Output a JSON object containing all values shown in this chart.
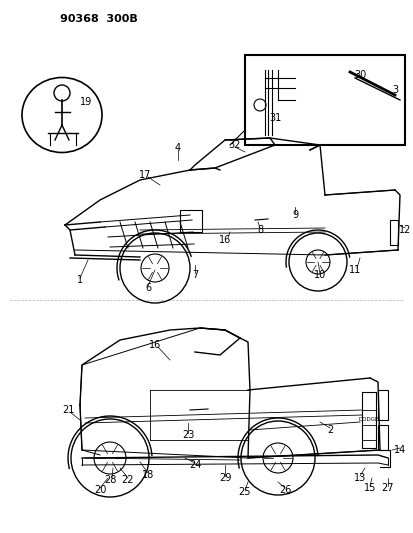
{
  "title_text": "90368  300B",
  "background_color": "#ffffff",
  "line_color": "#000000",
  "fig_width": 4.14,
  "fig_height": 5.33,
  "dpi": 100
}
